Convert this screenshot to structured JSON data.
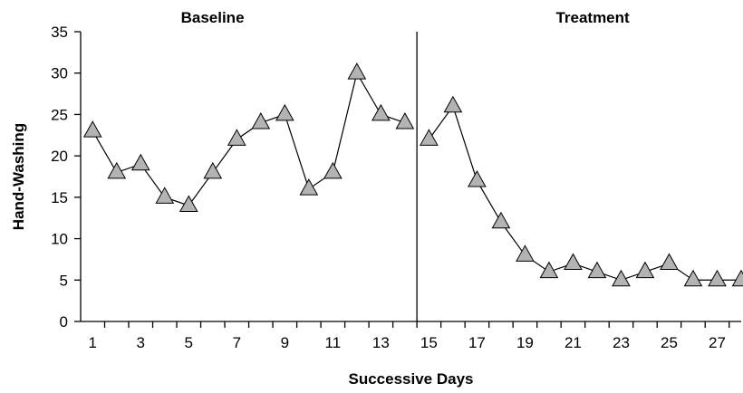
{
  "chart_data": {
    "type": "line",
    "xlabel": "Successive Days",
    "ylabel": "Hand-Washing",
    "xlim": [
      0.5,
      28
    ],
    "ylim": [
      0,
      35
    ],
    "yticks": [
      0,
      5,
      10,
      15,
      20,
      25,
      30,
      35
    ],
    "xticks": [
      1,
      3,
      5,
      7,
      9,
      11,
      13,
      15,
      17,
      19,
      21,
      23,
      25,
      27
    ],
    "phase_change_after_day": 14.5,
    "phases": [
      {
        "label": "Baseline"
      },
      {
        "label": "Treatment"
      }
    ],
    "series": [
      {
        "segment": "Baseline",
        "x": [
          1,
          2,
          3,
          4,
          5,
          6,
          7,
          8,
          9,
          10,
          11,
          12,
          13,
          14
        ],
        "values": [
          23,
          18,
          19,
          15,
          14,
          18,
          22,
          24,
          25,
          16,
          18,
          30,
          25,
          24
        ]
      },
      {
        "segment": "Treatment",
        "x": [
          15,
          16,
          17,
          18,
          19,
          20,
          21,
          22,
          23,
          24,
          25,
          26,
          27,
          28
        ],
        "values": [
          22,
          26,
          17,
          12,
          8,
          6,
          7,
          6,
          5,
          6,
          7,
          5,
          5,
          5
        ]
      }
    ],
    "marker": "triangle",
    "marker_color": "#b3b3b3",
    "line_color": "#000000",
    "grid": false,
    "legend": "none"
  }
}
